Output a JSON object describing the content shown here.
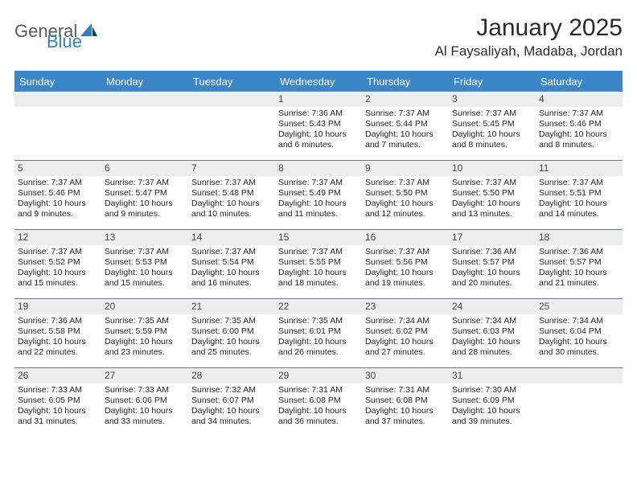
{
  "brand": {
    "part1": "General",
    "part2": "Blue"
  },
  "title": {
    "month": "January 2025",
    "location": "Al Faysaliyah, Madaba, Jordan"
  },
  "colors": {
    "brand_blue": "#3b86c6",
    "header_bg": "#3b86c6",
    "header_text": "#ffffff",
    "daynum_bg": "#eceded",
    "border": "#3b86c6",
    "text": "#222222",
    "logo_gray": "#5a5a5a"
  },
  "day_headers": [
    "Sunday",
    "Monday",
    "Tuesday",
    "Wednesday",
    "Thursday",
    "Friday",
    "Saturday"
  ],
  "weeks": [
    [
      null,
      null,
      null,
      {
        "n": "1",
        "sr": "7:36 AM",
        "ss": "5:43 PM",
        "d": "10 hours and 6 minutes."
      },
      {
        "n": "2",
        "sr": "7:37 AM",
        "ss": "5:44 PM",
        "d": "10 hours and 7 minutes."
      },
      {
        "n": "3",
        "sr": "7:37 AM",
        "ss": "5:45 PM",
        "d": "10 hours and 8 minutes."
      },
      {
        "n": "4",
        "sr": "7:37 AM",
        "ss": "5:46 PM",
        "d": "10 hours and 8 minutes."
      }
    ],
    [
      {
        "n": "5",
        "sr": "7:37 AM",
        "ss": "5:46 PM",
        "d": "10 hours and 9 minutes."
      },
      {
        "n": "6",
        "sr": "7:37 AM",
        "ss": "5:47 PM",
        "d": "10 hours and 9 minutes."
      },
      {
        "n": "7",
        "sr": "7:37 AM",
        "ss": "5:48 PM",
        "d": "10 hours and 10 minutes."
      },
      {
        "n": "8",
        "sr": "7:37 AM",
        "ss": "5:49 PM",
        "d": "10 hours and 11 minutes."
      },
      {
        "n": "9",
        "sr": "7:37 AM",
        "ss": "5:50 PM",
        "d": "10 hours and 12 minutes."
      },
      {
        "n": "10",
        "sr": "7:37 AM",
        "ss": "5:50 PM",
        "d": "10 hours and 13 minutes."
      },
      {
        "n": "11",
        "sr": "7:37 AM",
        "ss": "5:51 PM",
        "d": "10 hours and 14 minutes."
      }
    ],
    [
      {
        "n": "12",
        "sr": "7:37 AM",
        "ss": "5:52 PM",
        "d": "10 hours and 15 minutes."
      },
      {
        "n": "13",
        "sr": "7:37 AM",
        "ss": "5:53 PM",
        "d": "10 hours and 15 minutes."
      },
      {
        "n": "14",
        "sr": "7:37 AM",
        "ss": "5:54 PM",
        "d": "10 hours and 16 minutes."
      },
      {
        "n": "15",
        "sr": "7:37 AM",
        "ss": "5:55 PM",
        "d": "10 hours and 18 minutes."
      },
      {
        "n": "16",
        "sr": "7:37 AM",
        "ss": "5:56 PM",
        "d": "10 hours and 19 minutes."
      },
      {
        "n": "17",
        "sr": "7:36 AM",
        "ss": "5:57 PM",
        "d": "10 hours and 20 minutes."
      },
      {
        "n": "18",
        "sr": "7:36 AM",
        "ss": "5:57 PM",
        "d": "10 hours and 21 minutes."
      }
    ],
    [
      {
        "n": "19",
        "sr": "7:36 AM",
        "ss": "5:58 PM",
        "d": "10 hours and 22 minutes."
      },
      {
        "n": "20",
        "sr": "7:35 AM",
        "ss": "5:59 PM",
        "d": "10 hours and 23 minutes."
      },
      {
        "n": "21",
        "sr": "7:35 AM",
        "ss": "6:00 PM",
        "d": "10 hours and 25 minutes."
      },
      {
        "n": "22",
        "sr": "7:35 AM",
        "ss": "6:01 PM",
        "d": "10 hours and 26 minutes."
      },
      {
        "n": "23",
        "sr": "7:34 AM",
        "ss": "6:02 PM",
        "d": "10 hours and 27 minutes."
      },
      {
        "n": "24",
        "sr": "7:34 AM",
        "ss": "6:03 PM",
        "d": "10 hours and 28 minutes."
      },
      {
        "n": "25",
        "sr": "7:34 AM",
        "ss": "6:04 PM",
        "d": "10 hours and 30 minutes."
      }
    ],
    [
      {
        "n": "26",
        "sr": "7:33 AM",
        "ss": "6:05 PM",
        "d": "10 hours and 31 minutes."
      },
      {
        "n": "27",
        "sr": "7:33 AM",
        "ss": "6:06 PM",
        "d": "10 hours and 33 minutes."
      },
      {
        "n": "28",
        "sr": "7:32 AM",
        "ss": "6:07 PM",
        "d": "10 hours and 34 minutes."
      },
      {
        "n": "29",
        "sr": "7:31 AM",
        "ss": "6:08 PM",
        "d": "10 hours and 36 minutes."
      },
      {
        "n": "30",
        "sr": "7:31 AM",
        "ss": "6:08 PM",
        "d": "10 hours and 37 minutes."
      },
      {
        "n": "31",
        "sr": "7:30 AM",
        "ss": "6:09 PM",
        "d": "10 hours and 39 minutes."
      },
      null
    ]
  ],
  "labels": {
    "sunrise": "Sunrise:",
    "sunset": "Sunset:",
    "daylight": "Daylight:"
  }
}
